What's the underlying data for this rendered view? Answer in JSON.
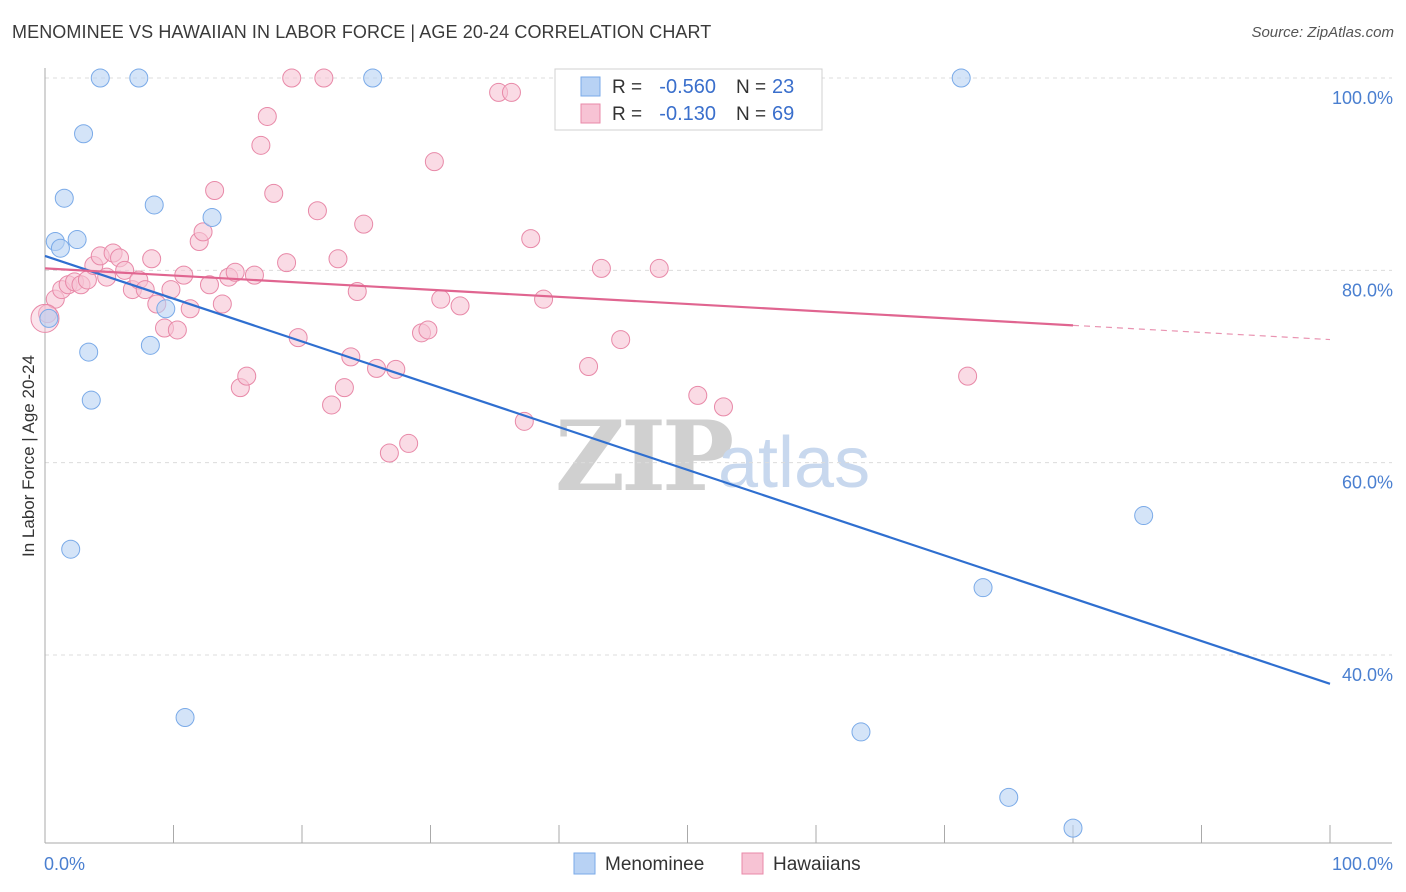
{
  "title": "MENOMINEE VS HAWAIIAN IN LABOR FORCE | AGE 20-24 CORRELATION CHART",
  "source": "Source: ZipAtlas.com",
  "watermark": {
    "zip": "ZIP",
    "atlas": "atlas"
  },
  "chart_data": {
    "type": "scatter",
    "title": "MENOMINEE VS HAWAIIAN IN LABOR FORCE | AGE 20-24 CORRELATION CHART",
    "xlabel": "",
    "ylabel": "In Labor Force | Age 20-24",
    "xlim": [
      0,
      100
    ],
    "ylim": [
      20,
      102
    ],
    "x_tick_labels": [
      "0.0%",
      "100.0%"
    ],
    "y_ticks": [
      {
        "value": 100,
        "label": "100.0%"
      },
      {
        "value": 80,
        "label": "80.0%"
      },
      {
        "value": 60,
        "label": "60.0%"
      },
      {
        "value": 40,
        "label": "40.0%"
      }
    ],
    "legend": [
      {
        "name": "Menominee",
        "r_label": "R =",
        "r_value": "-0.560",
        "n_label": "N =",
        "n_value": "23",
        "color": "#7aaae8",
        "fill": "#b8d2f4"
      },
      {
        "name": "Hawaiians",
        "r_label": "R =",
        "r_value": "-0.130",
        "n_label": "N =",
        "n_value": "69",
        "color": "#e889a8",
        "fill": "#f7c3d4"
      }
    ],
    "series": [
      {
        "name": "Menominee",
        "color": "#7aaae8",
        "fill": "#b8d2f4",
        "trend": {
          "x0": 0,
          "y0": 81.5,
          "x1": 100,
          "y1": 37.0,
          "solid_to": 100
        },
        "points": [
          [
            0.3,
            75.0
          ],
          [
            0.8,
            83.0
          ],
          [
            1.2,
            82.3
          ],
          [
            1.5,
            87.5
          ],
          [
            2.0,
            51.0
          ],
          [
            2.5,
            83.2
          ],
          [
            3.0,
            94.2
          ],
          [
            3.4,
            71.5
          ],
          [
            3.6,
            66.5
          ],
          [
            4.3,
            100.0
          ],
          [
            7.3,
            100.0
          ],
          [
            8.2,
            72.2
          ],
          [
            8.5,
            86.8
          ],
          [
            9.4,
            76.0
          ],
          [
            10.9,
            33.5
          ],
          [
            13.0,
            85.5
          ],
          [
            25.5,
            100.0
          ],
          [
            71.3,
            100.0
          ],
          [
            63.5,
            32.0
          ],
          [
            73.0,
            47.0
          ],
          [
            75.0,
            25.2
          ],
          [
            80.0,
            22.0
          ],
          [
            85.5,
            54.5
          ]
        ]
      },
      {
        "name": "Hawaiians",
        "color": "#e889a8",
        "fill": "#f7c3d4",
        "trend": {
          "x0": 0,
          "y0": 80.2,
          "x1": 100,
          "y1": 72.8,
          "solid_to": 80
        },
        "points": [
          [
            0.2,
            75.5
          ],
          [
            0.8,
            77.0
          ],
          [
            1.3,
            78.0
          ],
          [
            1.8,
            78.5
          ],
          [
            2.3,
            78.8
          ],
          [
            2.8,
            78.5
          ],
          [
            3.3,
            79.0
          ],
          [
            3.8,
            80.5
          ],
          [
            4.3,
            81.5
          ],
          [
            4.8,
            79.3
          ],
          [
            5.3,
            81.8
          ],
          [
            5.8,
            81.3
          ],
          [
            6.2,
            80.0
          ],
          [
            6.8,
            78.0
          ],
          [
            7.3,
            79.0
          ],
          [
            7.8,
            78.0
          ],
          [
            8.3,
            81.2
          ],
          [
            8.7,
            76.5
          ],
          [
            9.3,
            74.0
          ],
          [
            9.8,
            78.0
          ],
          [
            10.3,
            73.8
          ],
          [
            10.8,
            79.5
          ],
          [
            11.3,
            76.0
          ],
          [
            12.0,
            83.0
          ],
          [
            12.3,
            84.0
          ],
          [
            12.8,
            78.5
          ],
          [
            13.2,
            88.3
          ],
          [
            13.8,
            76.5
          ],
          [
            14.3,
            79.3
          ],
          [
            14.8,
            79.8
          ],
          [
            15.2,
            67.8
          ],
          [
            15.7,
            69.0
          ],
          [
            16.3,
            79.5
          ],
          [
            16.8,
            93.0
          ],
          [
            17.3,
            96.0
          ],
          [
            17.8,
            88.0
          ],
          [
            18.8,
            80.8
          ],
          [
            19.2,
            100.0
          ],
          [
            19.7,
            73.0
          ],
          [
            21.2,
            86.2
          ],
          [
            21.7,
            100.0
          ],
          [
            22.3,
            66.0
          ],
          [
            22.8,
            81.2
          ],
          [
            23.3,
            67.8
          ],
          [
            23.8,
            71.0
          ],
          [
            24.3,
            77.8
          ],
          [
            24.8,
            84.8
          ],
          [
            25.8,
            69.8
          ],
          [
            26.8,
            61.0
          ],
          [
            27.3,
            69.7
          ],
          [
            28.3,
            62.0
          ],
          [
            29.3,
            73.5
          ],
          [
            29.8,
            73.8
          ],
          [
            30.3,
            91.3
          ],
          [
            30.8,
            77.0
          ],
          [
            32.3,
            76.3
          ],
          [
            35.3,
            98.5
          ],
          [
            36.3,
            98.5
          ],
          [
            37.3,
            64.3
          ],
          [
            37.8,
            83.3
          ],
          [
            38.8,
            77.0
          ],
          [
            42.3,
            70.0
          ],
          [
            43.3,
            80.2
          ],
          [
            44.8,
            72.8
          ],
          [
            47.8,
            80.2
          ],
          [
            50.8,
            67.0
          ],
          [
            52.8,
            65.8
          ],
          [
            71.8,
            69.0
          ],
          [
            0.0,
            75.0
          ]
        ]
      }
    ]
  }
}
